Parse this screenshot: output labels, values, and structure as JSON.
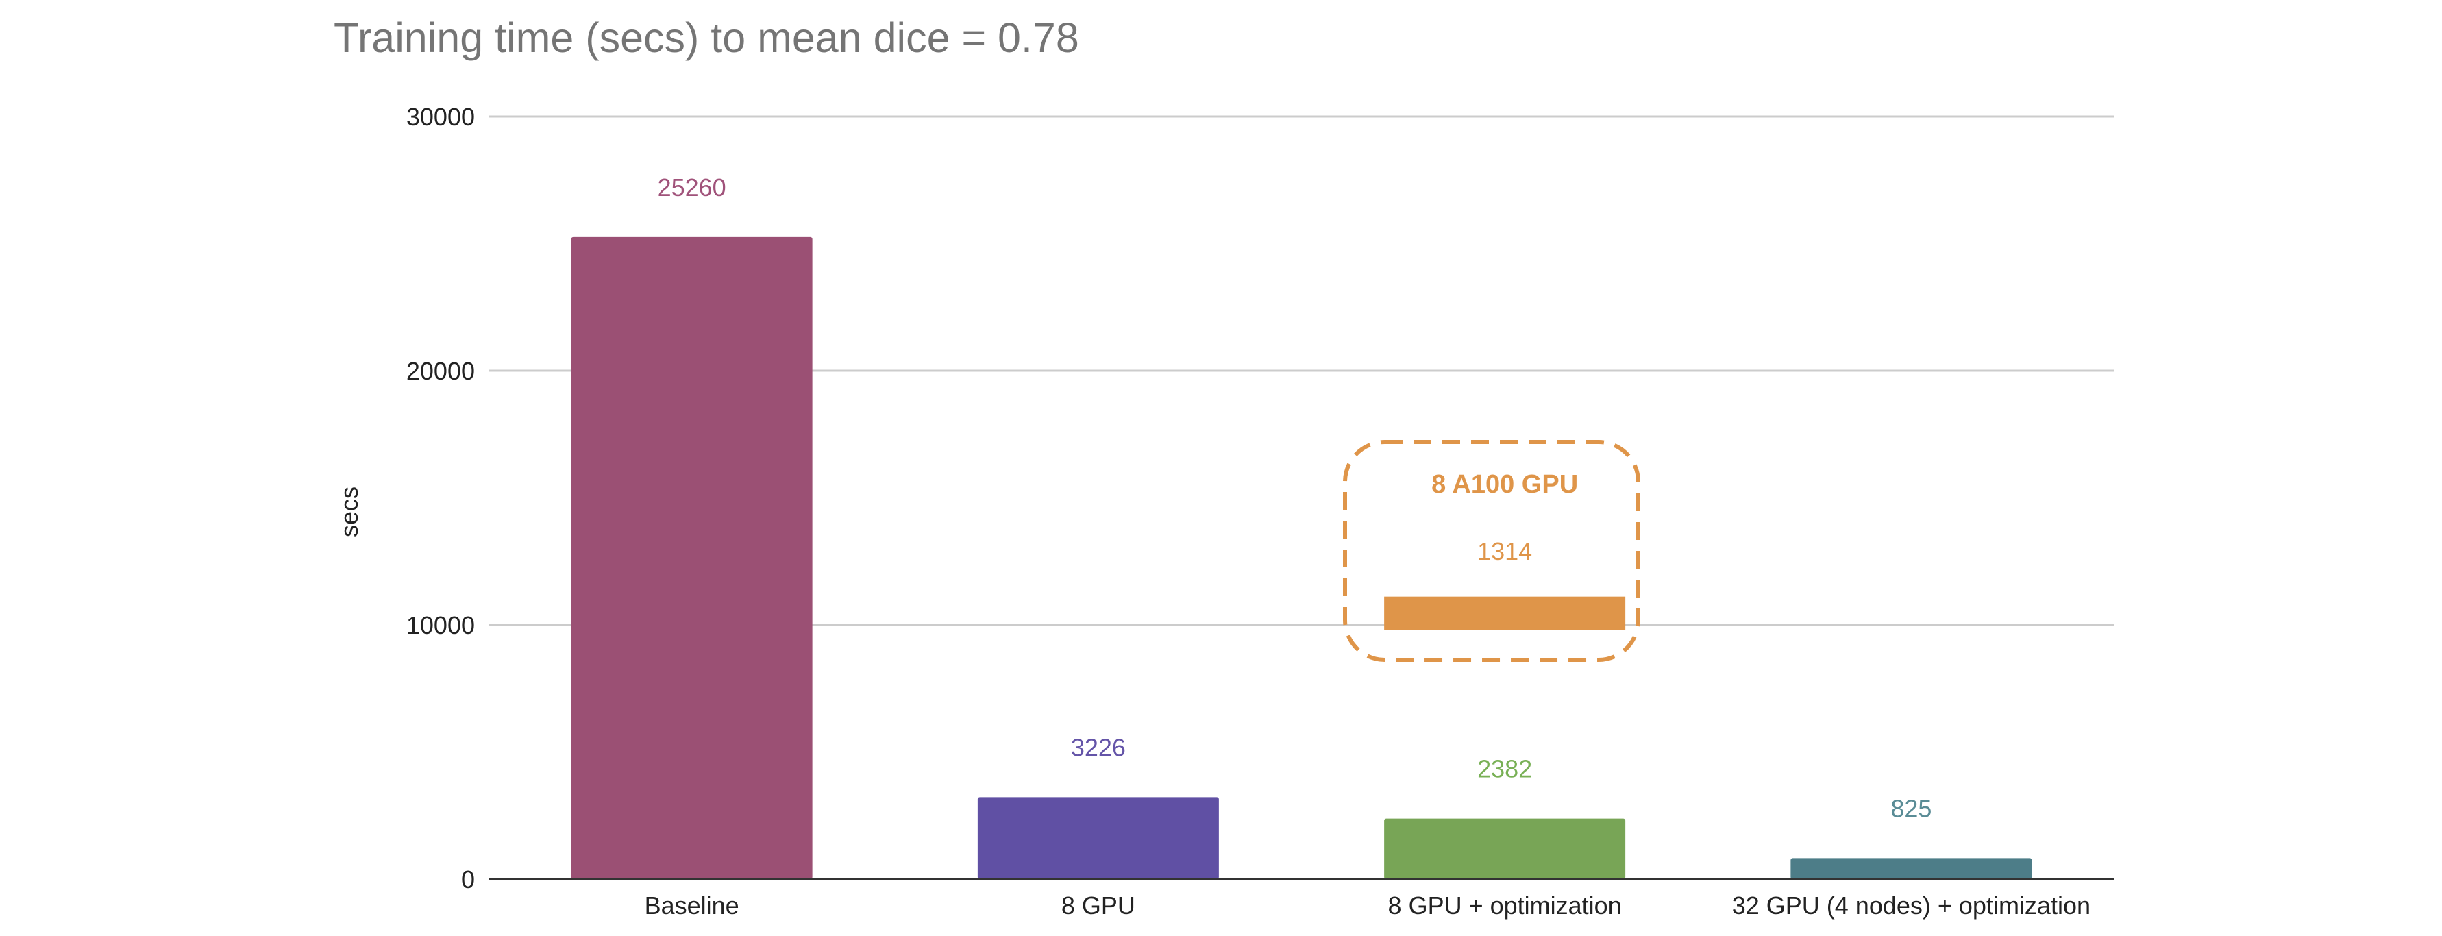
{
  "chart_data": {
    "type": "bar",
    "title": "Training time (secs) to mean dice = 0.78",
    "xlabel": "",
    "ylabel": "secs",
    "ylim": [
      0,
      30000
    ],
    "yticks": [
      0,
      10000,
      20000,
      30000
    ],
    "grid": true,
    "categories": [
      "Baseline",
      "8 GPU",
      "8 GPU + optimization",
      "32 GPU (4 nodes) + optimization"
    ],
    "values": [
      25260,
      3226,
      2382,
      825
    ],
    "colors": [
      "#9b5074",
      "#6050a4",
      "#78a556",
      "#4d7d88"
    ],
    "label_colors": [
      "#a0527a",
      "#6454a8",
      "#78b055",
      "#5a8c96"
    ],
    "annotation": {
      "label": "8 A100 GPU",
      "value": 1314,
      "category": "8 GPU + optimization",
      "color": "#df9549",
      "display_base": 9800
    }
  }
}
